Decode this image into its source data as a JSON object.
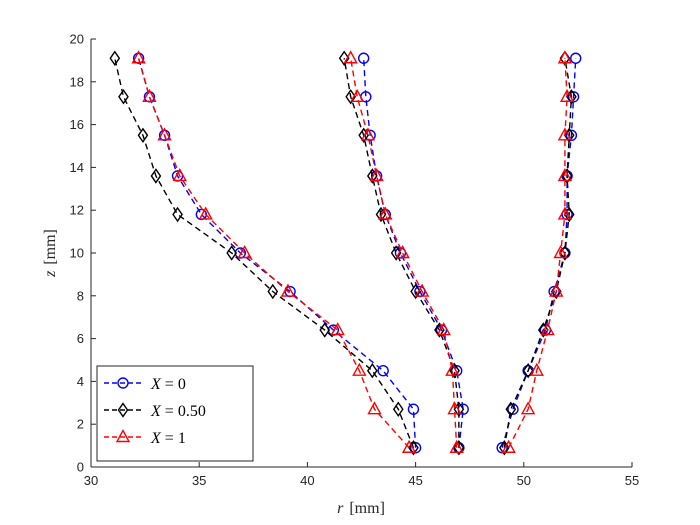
{
  "chart_data": {
    "type": "line",
    "title": "",
    "xlabel_var": "r",
    "xlabel_unit": "[mm]",
    "ylabel_var": "z",
    "ylabel_unit": "[mm]",
    "xlim": [
      30,
      55
    ],
    "ylim": [
      0,
      20
    ],
    "xticks": [
      30,
      35,
      40,
      45,
      50,
      55
    ],
    "yticks": [
      0,
      2,
      4,
      6,
      8,
      10,
      12,
      14,
      16,
      18,
      20
    ],
    "legend_position": "bottom-left",
    "series": [
      {
        "name": "X = 0",
        "legend_var": "X",
        "legend_val": "0",
        "color": "#0000ff",
        "marker": "circle",
        "branches": [
          {
            "r": [
              45.0,
              44.9,
              43.5,
              41.2,
              39.2,
              36.9,
              35.1,
              34.0,
              33.4,
              32.7,
              32.2
            ],
            "z": [
              0.9,
              2.7,
              4.5,
              6.4,
              8.2,
              10.0,
              11.8,
              13.6,
              15.5,
              17.3,
              19.1
            ]
          },
          {
            "r": [
              47.0,
              47.2,
              46.9,
              46.2,
              45.2,
              44.3,
              43.6,
              43.2,
              42.9,
              42.7,
              42.6
            ],
            "z": [
              0.9,
              2.7,
              4.5,
              6.4,
              8.2,
              10.0,
              11.8,
              13.6,
              15.5,
              17.3,
              19.1
            ]
          },
          {
            "r": [
              49.0,
              49.5,
              50.2,
              51.0,
              51.4,
              51.9,
              52.0,
              52.0,
              52.2,
              52.3,
              52.4
            ],
            "z": [
              0.9,
              2.7,
              4.5,
              6.4,
              8.2,
              10.0,
              11.8,
              13.6,
              15.5,
              17.3,
              19.1
            ]
          }
        ]
      },
      {
        "name": "X = 0.50",
        "legend_var": "X",
        "legend_val": "0.50",
        "color": "#000000",
        "marker": "diamond",
        "branches": [
          {
            "r": [
              44.9,
              44.2,
              43.0,
              40.8,
              38.4,
              36.5,
              34.0,
              33.0,
              32.4,
              31.5,
              31.1
            ],
            "z": [
              0.9,
              2.7,
              4.5,
              6.4,
              8.2,
              10.0,
              11.8,
              13.6,
              15.5,
              17.3,
              19.1
            ]
          },
          {
            "r": [
              47.0,
              47.0,
              46.8,
              46.1,
              45.0,
              44.1,
              43.4,
              43.0,
              42.6,
              42.0,
              41.7
            ],
            "z": [
              0.9,
              2.7,
              4.5,
              6.4,
              8.2,
              10.0,
              11.8,
              13.6,
              15.5,
              17.3,
              19.1
            ]
          },
          {
            "r": [
              49.1,
              49.4,
              50.2,
              50.9,
              51.5,
              51.9,
              52.1,
              52.0,
              52.1,
              52.2,
              51.9
            ],
            "z": [
              0.9,
              2.7,
              4.5,
              6.4,
              8.2,
              10.0,
              11.8,
              13.6,
              15.5,
              17.3,
              19.1
            ]
          }
        ]
      },
      {
        "name": "X = 1",
        "legend_var": "X",
        "legend_val": "1",
        "color": "#ff0000",
        "marker": "triangle",
        "branches": [
          {
            "r": [
              44.7,
              43.1,
              42.4,
              41.4,
              39.1,
              37.1,
              35.3,
              34.1,
              33.4,
              32.7,
              32.2
            ],
            "z": [
              0.9,
              2.7,
              4.5,
              6.4,
              8.2,
              10.0,
              11.8,
              13.6,
              15.5,
              17.3,
              19.1
            ]
          },
          {
            "r": [
              46.9,
              46.8,
              46.7,
              46.3,
              45.3,
              44.4,
              43.6,
              43.2,
              42.8,
              42.3,
              42.0
            ],
            "z": [
              0.9,
              2.7,
              4.5,
              6.4,
              8.2,
              10.0,
              11.8,
              13.6,
              15.5,
              17.3,
              19.1
            ]
          },
          {
            "r": [
              49.3,
              50.2,
              50.6,
              51.1,
              51.5,
              51.7,
              51.9,
              51.9,
              51.9,
              52.0,
              51.9
            ],
            "z": [
              0.9,
              2.7,
              4.5,
              6.4,
              8.2,
              10.0,
              11.8,
              13.6,
              15.5,
              17.3,
              19.1
            ]
          }
        ]
      }
    ]
  }
}
